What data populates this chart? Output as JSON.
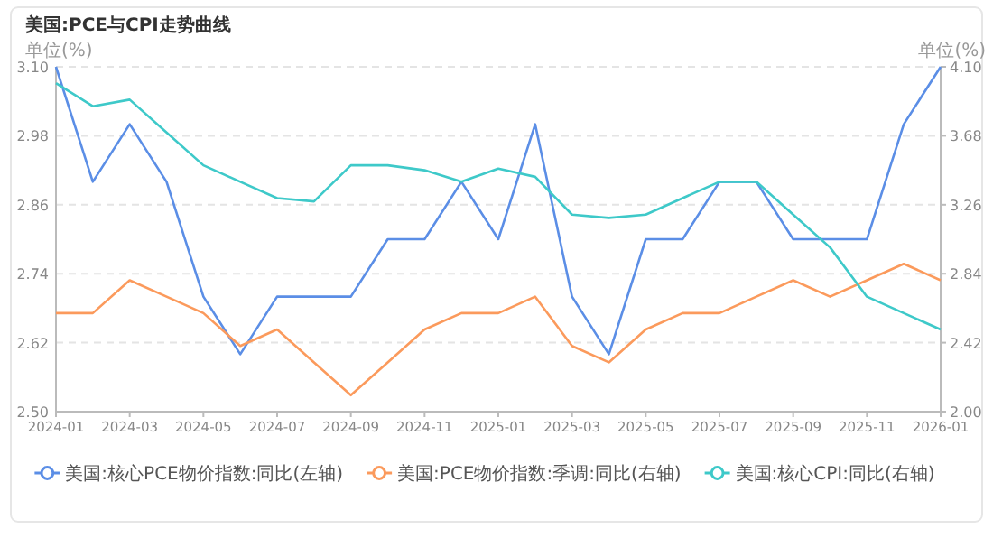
{
  "chart_data": {
    "type": "line",
    "title": "美国:PCE与CPI走势曲线",
    "ylabel": "单位(%)",
    "y2label": "单位(%)",
    "x": [
      "2024-01",
      "2024-02",
      "2024-03",
      "2024-04",
      "2024-05",
      "2024-06",
      "2024-07",
      "2024-08",
      "2024-09",
      "2024-10",
      "2024-11",
      "2024-12",
      "2025-01",
      "2025-02",
      "2025-03",
      "2025-04",
      "2025-05",
      "2025-06",
      "2025-07",
      "2025-08",
      "2025-09",
      "2025-10",
      "2025-11",
      "2025-12",
      "2026-01"
    ],
    "xlim": [
      "2024-01",
      "2026-01"
    ],
    "xticks": [
      "2024-01",
      "2024-03",
      "2024-05",
      "2024-07",
      "2024-09",
      "2024-11",
      "2025-01",
      "2025-03",
      "2025-05",
      "2025-07",
      "2025-09",
      "2025-11",
      "2026-01"
    ],
    "ylim": [
      2.5,
      3.1
    ],
    "yticks": [
      {
        "value": 2.5,
        "label": "2.50"
      },
      2.62,
      2.74,
      2.86,
      2.98,
      {
        "value": 3.1,
        "label": "3.10"
      }
    ],
    "y2lim": [
      2.0,
      4.1
    ],
    "y2ticks": [
      {
        "value": 2.0,
        "label": "2.00"
      },
      2.42,
      2.84,
      3.26,
      3.68,
      {
        "value": 4.1,
        "label": "4.10"
      }
    ],
    "grid": "y",
    "legend": "bottom",
    "series": [
      {
        "name": "美国:核心PCE物价指数:同比(左轴)",
        "color": "#5b8ee6",
        "values": [
          3.1,
          2.9,
          3.0,
          2.9,
          2.7,
          2.6,
          2.7,
          2.7,
          2.7,
          2.8,
          2.8,
          2.9,
          2.8,
          3.0,
          2.7,
          2.6,
          2.8,
          2.8,
          2.9,
          2.9,
          2.8,
          2.8,
          2.8,
          3.0,
          3.1
        ]
      },
      {
        "name": "美国:PCE物价指数:季调:同比(右轴)",
        "color": "#fb9a5c",
        "axis": "y2",
        "values": [
          2.6,
          2.6,
          2.8,
          2.7,
          2.6,
          2.4,
          2.5,
          2.3,
          2.1,
          2.3,
          2.5,
          2.6,
          2.6,
          2.7,
          2.4,
          2.3,
          2.5,
          2.6,
          2.6,
          2.7,
          2.8,
          2.7,
          2.8,
          2.9,
          2.8
        ]
      },
      {
        "name": "美国:核心CPI:同比(右轴)",
        "color": "#3ec9c9",
        "axis": "y2",
        "values": [
          4.0,
          3.86,
          3.9,
          3.7,
          3.5,
          3.4,
          3.3,
          3.28,
          3.5,
          3.5,
          3.47,
          3.4,
          3.48,
          3.43,
          3.2,
          3.18,
          3.2,
          3.3,
          3.4,
          3.4,
          3.2,
          3.0,
          2.7,
          2.6,
          2.5
        ]
      }
    ]
  }
}
